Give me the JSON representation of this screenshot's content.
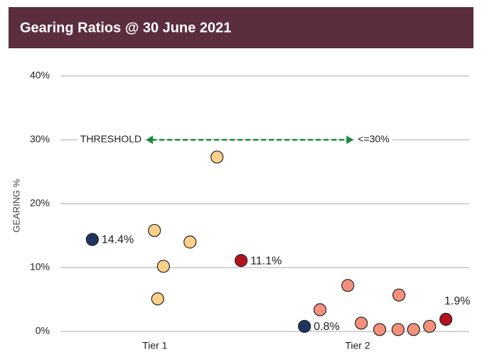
{
  "chart_data": {
    "type": "scatter",
    "title": "Gearing Ratios @ 30 June 2021",
    "y_label": "GEARING %",
    "xlim": [
      0,
      100
    ],
    "xticks": [
      {
        "value": 23.1,
        "label": "Tier 1"
      },
      {
        "value": 72.7,
        "label": "Tier 2"
      }
    ],
    "ylim": [
      0,
      40
    ],
    "yticks": [
      {
        "value": 0,
        "label": "0%"
      },
      {
        "value": 10,
        "label": "10%"
      },
      {
        "value": 20,
        "label": "20%"
      },
      {
        "value": 30,
        "label": "30%"
      },
      {
        "value": 40,
        "label": "40%"
      }
    ],
    "grid": true,
    "threshold": {
      "value": 30,
      "label": "THRESHOLD",
      "note": "<=30%",
      "x": [
        20.9,
        71.7
      ],
      "color": "#1a8a3c"
    },
    "series": [
      {
        "color": "#fdd08a",
        "x": [
          23.0,
          25.2,
          23.8,
          31.7,
          38.3
        ],
        "values": [
          15.8,
          10.2,
          5.1,
          14.0,
          27.3
        ]
      },
      {
        "color": "#f4907c",
        "x": [
          63.5,
          70.3,
          73.6,
          78.1,
          82.6,
          82.8,
          86.4,
          90.3
        ],
        "values": [
          3.4,
          7.2,
          1.3,
          0.3,
          0.3,
          5.7,
          0.3,
          0.8
        ]
      },
      {
        "color": "#1f3461",
        "x": [
          7.8,
          59.7
        ],
        "values": [
          14.4,
          0.8
        ],
        "value_labels": [
          "14.4%",
          "0.8%"
        ]
      },
      {
        "color": "#b5121b",
        "x": [
          44.2,
          94.3
        ],
        "values": [
          11.1,
          1.9
        ],
        "value_labels": [
          "11.1%",
          "1.9%"
        ]
      }
    ]
  }
}
